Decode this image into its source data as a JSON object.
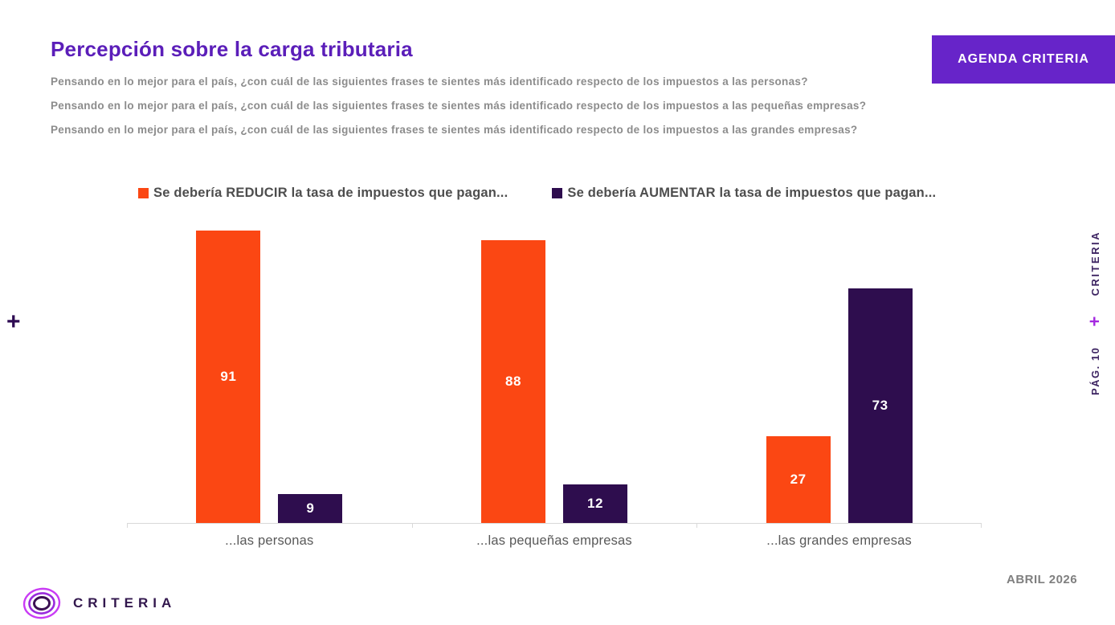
{
  "header": {
    "title": "Percepción sobre la carga tributaria",
    "subtitles": [
      "Pensando en lo mejor para el país, ¿con cuál de las siguientes frases te sientes más identificado respecto de los impuestos a las personas?",
      "Pensando en lo mejor para el país, ¿con cuál de las siguientes frases te sientes más identificado respecto de los impuestos a las pequeñas empresas?",
      "Pensando en lo mejor para el país, ¿con cuál de las siguientes frases te sientes más identificado respecto de los impuestos a las grandes empresas?"
    ],
    "agenda_button": "AGENDA CRITERIA"
  },
  "legend": [
    {
      "label": "Se debería REDUCIR la tasa de impuestos que pagan...",
      "color": "#FB4713"
    },
    {
      "label": "Se debería AUMENTAR la tasa de impuestos que pagan...",
      "color": "#2E0D4E"
    }
  ],
  "chart_data": {
    "type": "bar",
    "categories": [
      "...las personas",
      "...las pequeñas empresas",
      "...las grandes empresas"
    ],
    "series": [
      {
        "name": "Se debería REDUCIR la tasa de impuestos que pagan...",
        "color": "#FB4713",
        "values": [
          91,
          88,
          27
        ]
      },
      {
        "name": "Se debería AUMENTAR la tasa de impuestos que pagan...",
        "color": "#2E0D4E",
        "values": [
          9,
          12,
          73
        ]
      }
    ],
    "ylim": [
      0,
      100
    ],
    "grid": false,
    "legend_position": "top",
    "data_labels": "inside-bar-white"
  },
  "right_rail": {
    "brand": "CRITERIA",
    "plus": "+",
    "page": "PÁG. 10"
  },
  "decorations": {
    "left_plus": "+"
  },
  "footer": {
    "brand": "CRITERIA",
    "date": "ABRIL 2026"
  },
  "colors": {
    "title": "#5B1EB9",
    "subtitle": "#8C8C8C",
    "agenda_button_bg": "#6724C9",
    "bar_reducir": "#FB4713",
    "bar_aumentar": "#2E0D4E",
    "axis_line": "#D9D9D9",
    "rail_text": "#3D2462",
    "rail_plus": "#A428E0",
    "date_text": "#7F7F7F"
  }
}
